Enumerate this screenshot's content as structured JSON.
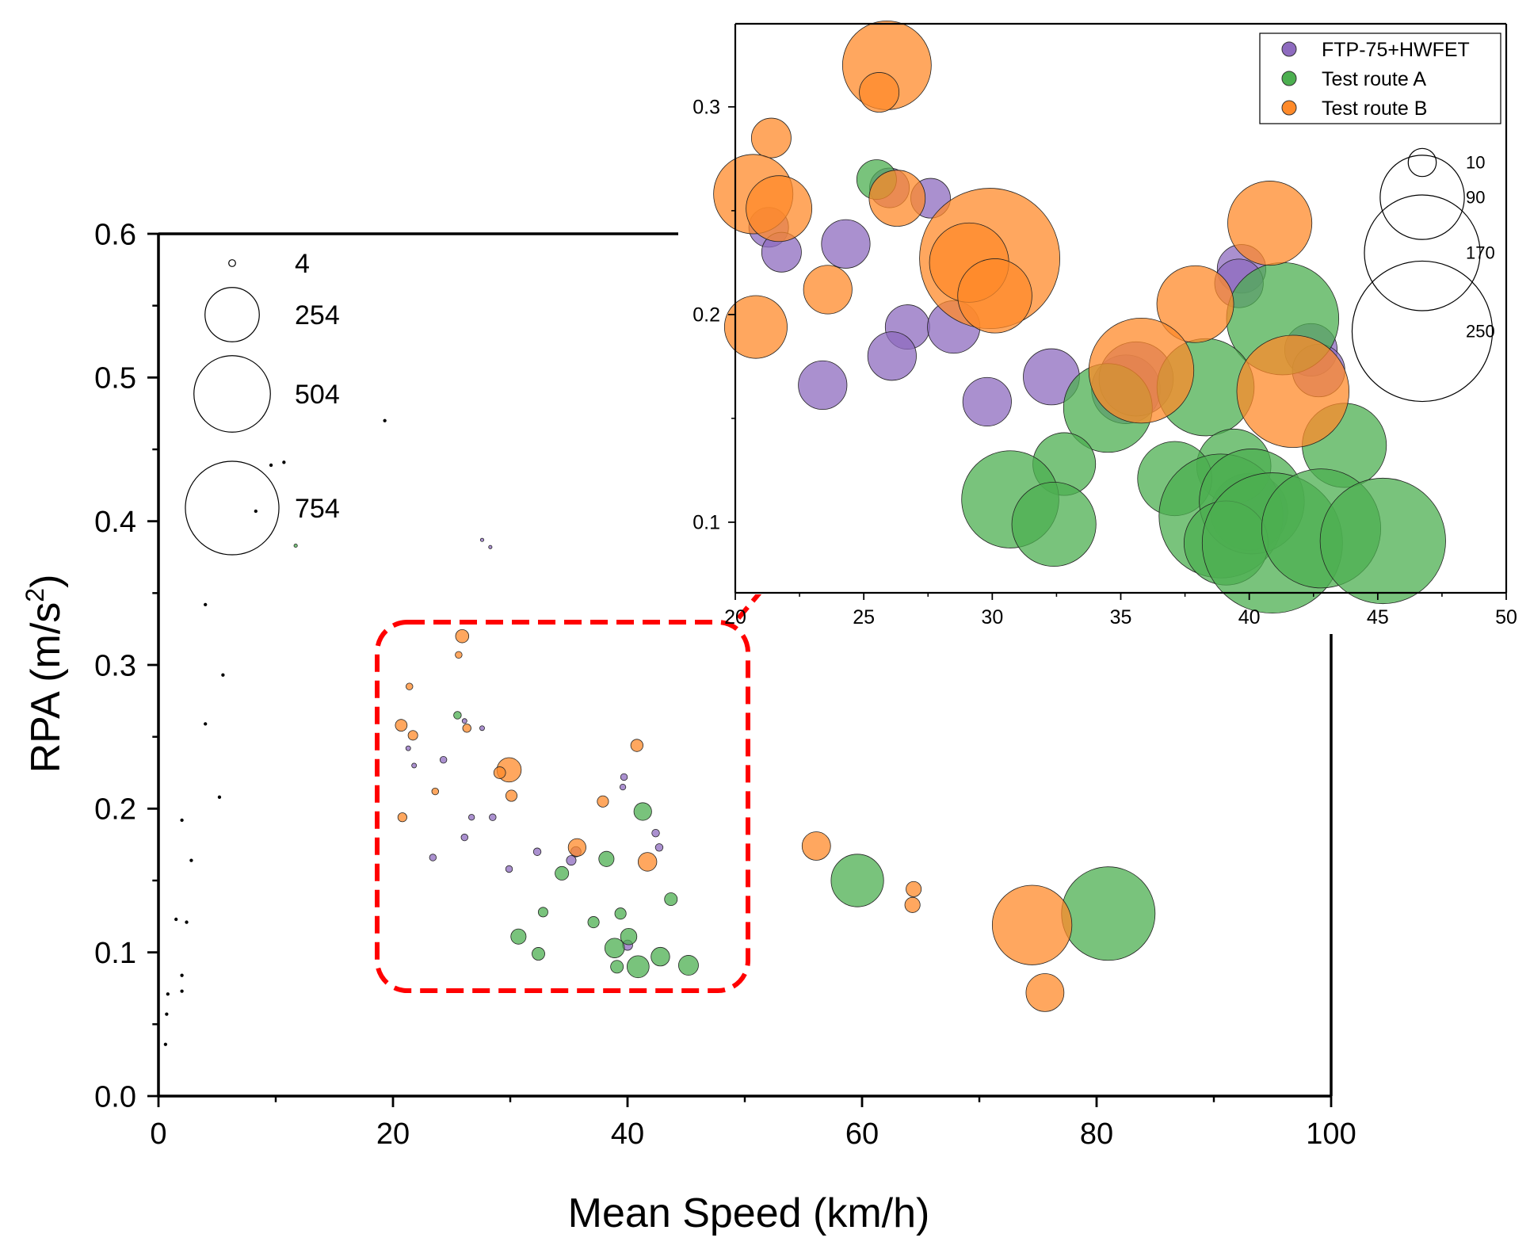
{
  "colors": {
    "ftp": "#8e6bbf",
    "route_a": "#4caf50",
    "route_b": "#ff8a2a",
    "callout": "#ff0000",
    "axis": "#000000"
  },
  "chart_data": [
    {
      "id": "main",
      "type": "bubble",
      "xlabel": "Mean Speed (km/h)",
      "ylabel_main": "RPA (m/s",
      "ylabel_sup": "2",
      "ylabel_close": ")",
      "xlim": [
        0,
        100
      ],
      "ylim": [
        0,
        0.6
      ],
      "xticks": [
        0,
        20,
        40,
        60,
        80,
        100
      ],
      "xtick_labels": [
        "0",
        "20",
        "40",
        "60",
        "80",
        "100"
      ],
      "yticks": [
        0,
        0.1,
        0.2,
        0.3,
        0.4,
        0.5,
        0.6
      ],
      "ytick_labels": [
        "0.0",
        "0.1",
        "0.2",
        "0.3",
        "0.4",
        "0.5",
        "0.6"
      ],
      "size_legend": [
        {
          "value": 4,
          "label": "4"
        },
        {
          "value": 254,
          "label": "254"
        },
        {
          "value": 504,
          "label": "504"
        },
        {
          "value": 754,
          "label": "754"
        }
      ],
      "series": [
        {
          "key": "ftp",
          "points": [
            {
              "x": 35.2,
              "y": 0.164,
              "s": 8
            },
            {
              "x": 35.6,
              "y": 0.17,
              "s": 9
            },
            {
              "x": 40.0,
              "y": 0.105,
              "s": 9
            },
            {
              "x": 32.3,
              "y": 0.17,
              "s": 5
            },
            {
              "x": 29.9,
              "y": 0.158,
              "s": 4
            },
            {
              "x": 23.4,
              "y": 0.166,
              "s": 4
            },
            {
              "x": 26.1,
              "y": 0.18,
              "s": 4
            },
            {
              "x": 28.5,
              "y": 0.194,
              "s": 4
            },
            {
              "x": 26.7,
              "y": 0.194,
              "s": 3
            },
            {
              "x": 24.3,
              "y": 0.234,
              "s": 4
            },
            {
              "x": 21.8,
              "y": 0.23,
              "s": 2
            },
            {
              "x": 21.3,
              "y": 0.242,
              "s": 2
            },
            {
              "x": 26.1,
              "y": 0.261,
              "s": 2
            },
            {
              "x": 27.6,
              "y": 0.256,
              "s": 2
            },
            {
              "x": 39.7,
              "y": 0.222,
              "s": 4
            },
            {
              "x": 39.6,
              "y": 0.215,
              "s": 3
            },
            {
              "x": 42.4,
              "y": 0.183,
              "s": 5
            },
            {
              "x": 42.7,
              "y": 0.173,
              "s": 5
            },
            {
              "x": 27.6,
              "y": 0.387,
              "s": 1
            },
            {
              "x": 28.3,
              "y": 0.382,
              "s": 1
            }
          ]
        },
        {
          "key": "route_a",
          "points": [
            {
              "x": 41.3,
              "y": 0.198,
              "s": 27
            },
            {
              "x": 38.2,
              "y": 0.165,
              "s": 20
            },
            {
              "x": 34.4,
              "y": 0.155,
              "s": 16
            },
            {
              "x": 43.7,
              "y": 0.137,
              "s": 14
            },
            {
              "x": 39.4,
              "y": 0.127,
              "s": 11
            },
            {
              "x": 32.8,
              "y": 0.128,
              "s": 8
            },
            {
              "x": 37.1,
              "y": 0.121,
              "s": 11
            },
            {
              "x": 30.7,
              "y": 0.111,
              "s": 20
            },
            {
              "x": 32.4,
              "y": 0.099,
              "s": 14
            },
            {
              "x": 38.9,
              "y": 0.103,
              "s": 33
            },
            {
              "x": 40.1,
              "y": 0.111,
              "s": 23
            },
            {
              "x": 39.1,
              "y": 0.09,
              "s": 14
            },
            {
              "x": 40.9,
              "y": 0.09,
              "s": 42
            },
            {
              "x": 42.8,
              "y": 0.097,
              "s": 30
            },
            {
              "x": 45.2,
              "y": 0.091,
              "s": 34
            },
            {
              "x": 25.5,
              "y": 0.265,
              "s": 5
            },
            {
              "x": 11.7,
              "y": 0.383,
              "s": 1
            },
            {
              "x": 59.6,
              "y": 0.15,
              "s": 238
            },
            {
              "x": 81.0,
              "y": 0.127,
              "s": 754
            }
          ]
        },
        {
          "key": "route_b",
          "points": [
            {
              "x": 25.9,
              "y": 0.32,
              "s": 15
            },
            {
              "x": 25.6,
              "y": 0.307,
              "s": 4
            },
            {
              "x": 21.4,
              "y": 0.285,
              "s": 4
            },
            {
              "x": 20.7,
              "y": 0.258,
              "s": 12
            },
            {
              "x": 21.7,
              "y": 0.251,
              "s": 8
            },
            {
              "x": 26.3,
              "y": 0.256,
              "s": 6
            },
            {
              "x": 29.9,
              "y": 0.227,
              "s": 51
            },
            {
              "x": 29.1,
              "y": 0.225,
              "s": 12
            },
            {
              "x": 30.1,
              "y": 0.209,
              "s": 11
            },
            {
              "x": 23.6,
              "y": 0.212,
              "s": 4
            },
            {
              "x": 20.8,
              "y": 0.194,
              "s": 7
            },
            {
              "x": 40.8,
              "y": 0.244,
              "s": 13
            },
            {
              "x": 37.9,
              "y": 0.205,
              "s": 11
            },
            {
              "x": 35.7,
              "y": 0.173,
              "s": 27
            },
            {
              "x": 41.7,
              "y": 0.163,
              "s": 30
            },
            {
              "x": 56.1,
              "y": 0.174,
              "s": 70
            },
            {
              "x": 64.4,
              "y": 0.144,
              "s": 20
            },
            {
              "x": 64.3,
              "y": 0.133,
              "s": 20
            },
            {
              "x": 74.5,
              "y": 0.119,
              "s": 546
            },
            {
              "x": 75.6,
              "y": 0.072,
              "s": 124
            }
          ]
        },
        {
          "key": "black",
          "points": [
            {
              "x": 19.3,
              "y": 0.47,
              "s": 1
            },
            {
              "x": 8.3,
              "y": 0.407,
              "s": 1
            },
            {
              "x": 10.7,
              "y": 0.441,
              "s": 1
            },
            {
              "x": 9.6,
              "y": 0.439,
              "s": 1
            },
            {
              "x": 4.0,
              "y": 0.342,
              "s": 1
            },
            {
              "x": 5.5,
              "y": 0.293,
              "s": 1
            },
            {
              "x": 4.0,
              "y": 0.259,
              "s": 1
            },
            {
              "x": 5.2,
              "y": 0.208,
              "s": 1
            },
            {
              "x": 2.0,
              "y": 0.192,
              "s": 1
            },
            {
              "x": 2.8,
              "y": 0.164,
              "s": 1
            },
            {
              "x": 1.5,
              "y": 0.123,
              "s": 1
            },
            {
              "x": 2.4,
              "y": 0.121,
              "s": 1
            },
            {
              "x": 2.0,
              "y": 0.084,
              "s": 1
            },
            {
              "x": 2.0,
              "y": 0.073,
              "s": 1
            },
            {
              "x": 0.8,
              "y": 0.071,
              "s": 1
            },
            {
              "x": 0.7,
              "y": 0.057,
              "s": 1
            },
            {
              "x": 0.6,
              "y": 0.036,
              "s": 1
            }
          ]
        }
      ]
    },
    {
      "id": "inset",
      "type": "bubble",
      "xlim": [
        20,
        50
      ],
      "ylim": [
        0.066,
        0.34
      ],
      "xticks": [
        20,
        25,
        30,
        35,
        40,
        45,
        50
      ],
      "xtick_labels": [
        "20",
        "25",
        "30",
        "35",
        "40",
        "45",
        "50"
      ],
      "yticks": [
        0.1,
        0.2,
        0.3
      ],
      "ytick_labels": [
        "0.1",
        "0.2",
        "0.3"
      ],
      "legend": [
        "FTP-75+HWFET",
        "Test route A",
        "Test route B"
      ],
      "size_legend": [
        {
          "value": 10,
          "label": "10"
        },
        {
          "value": 90,
          "label": "90"
        },
        {
          "value": 170,
          "label": "170"
        },
        {
          "value": 250,
          "label": "250"
        }
      ],
      "series": [
        {
          "key": "ftp",
          "points": [
            {
              "x": 26.0,
              "y": 0.261,
              "s": 20
            },
            {
              "x": 27.6,
              "y": 0.256,
              "s": 20
            },
            {
              "x": 21.3,
              "y": 0.242,
              "s": 20
            },
            {
              "x": 21.8,
              "y": 0.23,
              "s": 20
            },
            {
              "x": 24.3,
              "y": 0.234,
              "s": 30
            },
            {
              "x": 26.7,
              "y": 0.194,
              "s": 25
            },
            {
              "x": 28.5,
              "y": 0.194,
              "s": 35
            },
            {
              "x": 26.1,
              "y": 0.18,
              "s": 30
            },
            {
              "x": 23.4,
              "y": 0.166,
              "s": 30
            },
            {
              "x": 29.8,
              "y": 0.158,
              "s": 30
            },
            {
              "x": 32.3,
              "y": 0.17,
              "s": 40
            },
            {
              "x": 35.2,
              "y": 0.164,
              "s": 60
            },
            {
              "x": 35.6,
              "y": 0.169,
              "s": 70
            },
            {
              "x": 39.7,
              "y": 0.222,
              "s": 30
            },
            {
              "x": 39.6,
              "y": 0.215,
              "s": 30
            },
            {
              "x": 42.4,
              "y": 0.183,
              "s": 35
            },
            {
              "x": 42.7,
              "y": 0.173,
              "s": 35
            },
            {
              "x": 40.0,
              "y": 0.105,
              "s": 75
            }
          ]
        },
        {
          "key": "route_a",
          "points": [
            {
              "x": 25.5,
              "y": 0.265,
              "s": 20
            },
            {
              "x": 41.3,
              "y": 0.198,
              "s": 160
            },
            {
              "x": 38.3,
              "y": 0.165,
              "s": 120
            },
            {
              "x": 34.5,
              "y": 0.155,
              "s": 100
            },
            {
              "x": 43.7,
              "y": 0.137,
              "s": 90
            },
            {
              "x": 39.4,
              "y": 0.127,
              "s": 70
            },
            {
              "x": 32.8,
              "y": 0.128,
              "s": 50
            },
            {
              "x": 37.1,
              "y": 0.121,
              "s": 70
            },
            {
              "x": 30.7,
              "y": 0.111,
              "s": 120
            },
            {
              "x": 32.4,
              "y": 0.099,
              "s": 90
            },
            {
              "x": 38.9,
              "y": 0.103,
              "s": 195
            },
            {
              "x": 40.1,
              "y": 0.11,
              "s": 140
            },
            {
              "x": 39.1,
              "y": 0.09,
              "s": 90
            },
            {
              "x": 40.9,
              "y": 0.09,
              "s": 250
            },
            {
              "x": 42.8,
              "y": 0.097,
              "s": 180
            },
            {
              "x": 45.2,
              "y": 0.091,
              "s": 200
            }
          ]
        },
        {
          "key": "route_b",
          "points": [
            {
              "x": 25.9,
              "y": 0.32,
              "s": 100
            },
            {
              "x": 25.6,
              "y": 0.307,
              "s": 20
            },
            {
              "x": 21.4,
              "y": 0.285,
              "s": 20
            },
            {
              "x": 20.7,
              "y": 0.258,
              "s": 80
            },
            {
              "x": 21.7,
              "y": 0.251,
              "s": 55
            },
            {
              "x": 26.3,
              "y": 0.256,
              "s": 40
            },
            {
              "x": 29.9,
              "y": 0.227,
              "s": 250
            },
            {
              "x": 29.1,
              "y": 0.225,
              "s": 80
            },
            {
              "x": 30.1,
              "y": 0.209,
              "s": 70
            },
            {
              "x": 23.6,
              "y": 0.212,
              "s": 30
            },
            {
              "x": 20.8,
              "y": 0.194,
              "s": 50
            },
            {
              "x": 40.8,
              "y": 0.244,
              "s": 90
            },
            {
              "x": 37.9,
              "y": 0.205,
              "s": 75
            },
            {
              "x": 35.8,
              "y": 0.173,
              "s": 140
            },
            {
              "x": 41.7,
              "y": 0.163,
              "s": 160
            }
          ]
        }
      ]
    }
  ]
}
